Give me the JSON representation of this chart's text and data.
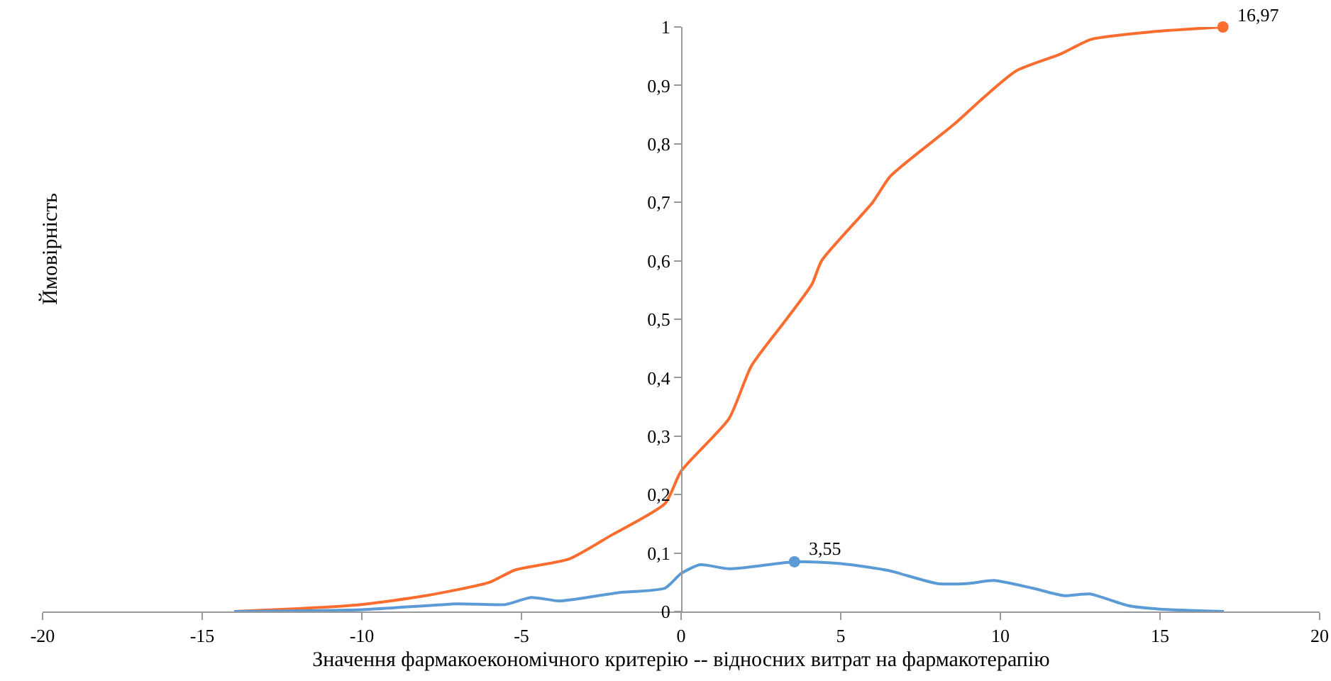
{
  "chart_data": {
    "type": "line",
    "xlabel": "Значення фармакоекономічного критерію -- відносних витрат на фармакотерапію",
    "ylabel": "Ймовірність",
    "xlim": [
      -20,
      20
    ],
    "xticks": [
      -20,
      -15,
      -10,
      -5,
      0,
      5,
      10,
      15,
      20
    ],
    "ylim": [
      0,
      1
    ],
    "yticks": [
      0,
      {
        "value": 0.1,
        "label": "0,1"
      },
      {
        "value": 0.2,
        "label": "0,2"
      },
      {
        "value": 0.3,
        "label": "0,3"
      },
      {
        "value": 0.4,
        "label": "0,4"
      },
      {
        "value": 0.5,
        "label": "0,5"
      },
      {
        "value": 0.6,
        "label": "0,6"
      },
      {
        "value": 0.7,
        "label": "0,7"
      },
      {
        "value": 0.8,
        "label": "0,8"
      },
      {
        "value": 0.9,
        "label": "0,9"
      },
      1
    ],
    "grid": false,
    "marker": "none",
    "line_style": "solid",
    "series": [
      {
        "color": "#fb6c2f",
        "x": [
          -14,
          -12,
          -10,
          -8,
          -6,
          -5.2,
          -3.5,
          -2.2,
          -0.5,
          0,
          1.5,
          2.2,
          3.3,
          4.1,
          4.4,
          6,
          6.56,
          8.54,
          9.47,
          10.5,
          11.9,
          12.85,
          14.8,
          16.97
        ],
        "values": [
          0,
          0.005,
          0.012,
          0.027,
          0.05,
          0.071,
          0.09,
          0.13,
          0.185,
          0.24,
          0.33,
          0.42,
          0.5,
          0.56,
          0.6,
          0.7,
          0.745,
          0.833,
          0.879,
          0.925,
          0.954,
          0.979,
          0.992,
          1
        ]
      },
      {
        "color": "#5b9bd5",
        "x": [
          -14,
          -10,
          -7,
          -5.5,
          -4.7,
          -3.8,
          -2,
          -0.5,
          0,
          0.6,
          1.5,
          3.55,
          5,
          6.5,
          8,
          9,
          9.8,
          11,
          12,
          12.8,
          14,
          15,
          17
        ],
        "values": [
          0,
          0.003,
          0.013,
          0.012,
          0.024,
          0.018,
          0.032,
          0.04,
          0.065,
          0.08,
          0.073,
          0.085,
          0.082,
          0.07,
          0.048,
          0.048,
          0.053,
          0.04,
          0.027,
          0.03,
          0.01,
          0.004,
          0
        ]
      }
    ],
    "annotations": [
      {
        "text": "3,55",
        "x": 3.55,
        "y": 0.085
      },
      {
        "text": "16,97",
        "x": 16.97,
        "y": 1
      }
    ]
  }
}
